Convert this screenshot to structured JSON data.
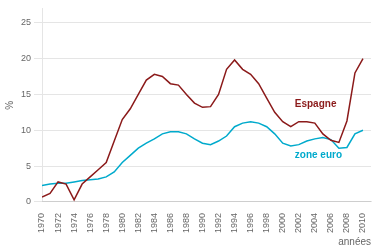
{
  "chart_data": {
    "type": "line",
    "xlabel": "années",
    "ylabel": "%",
    "x": [
      1970,
      1971,
      1972,
      1973,
      1974,
      1975,
      1976,
      1977,
      1978,
      1979,
      1980,
      1981,
      1982,
      1983,
      1984,
      1985,
      1986,
      1987,
      1988,
      1989,
      1990,
      1991,
      1992,
      1993,
      1994,
      1995,
      1996,
      1997,
      1998,
      1999,
      2000,
      2001,
      2002,
      2003,
      2004,
      2005,
      2006,
      2007,
      2008,
      2009,
      2010
    ],
    "series": [
      {
        "color": "#8b1a1a",
        "values": [
          0.7,
          1.2,
          2.8,
          2.5,
          0.3,
          2.5,
          3.5,
          4.5,
          5.5,
          8.5,
          11.5,
          13.0,
          15.0,
          17.0,
          17.8,
          17.5,
          16.5,
          16.3,
          15.0,
          13.8,
          13.2,
          13.3,
          15.0,
          18.5,
          19.8,
          18.5,
          17.8,
          16.5,
          14.5,
          12.5,
          11.2,
          10.5,
          11.2,
          11.2,
          11.0,
          9.5,
          8.6,
          8.3,
          11.3,
          18.0,
          20.0
        ]
      },
      {
        "color": "#00aacc",
        "values": [
          2.3,
          2.5,
          2.6,
          2.6,
          2.8,
          3.0,
          3.1,
          3.2,
          3.5,
          4.2,
          5.5,
          6.5,
          7.5,
          8.2,
          8.8,
          9.5,
          9.8,
          9.8,
          9.5,
          8.8,
          8.2,
          8.0,
          8.5,
          9.2,
          10.5,
          11.0,
          11.2,
          11.0,
          10.5,
          9.5,
          8.2,
          7.8,
          8.0,
          8.5,
          8.8,
          9.0,
          8.7,
          7.5,
          7.6,
          9.5,
          10.0
        ]
      }
    ],
    "xlim": [
      1970,
      2011
    ],
    "xticks": [
      1970,
      1972,
      1974,
      1976,
      1978,
      1980,
      1982,
      1984,
      1986,
      1988,
      1990,
      1992,
      1994,
      1996,
      1998,
      2000,
      2002,
      2004,
      2006,
      2008,
      2010
    ],
    "ylim": [
      0,
      27
    ],
    "yticks": [
      0,
      5,
      10,
      15,
      20,
      25
    ],
    "grid": "y",
    "annotations": [
      {
        "text": "Espagne",
        "x": 2001.5,
        "y": 13.2,
        "color": "#8b1a1a"
      },
      {
        "text": "zone euro",
        "x": 2001.5,
        "y": 6.2,
        "color": "#00aacc"
      }
    ]
  }
}
